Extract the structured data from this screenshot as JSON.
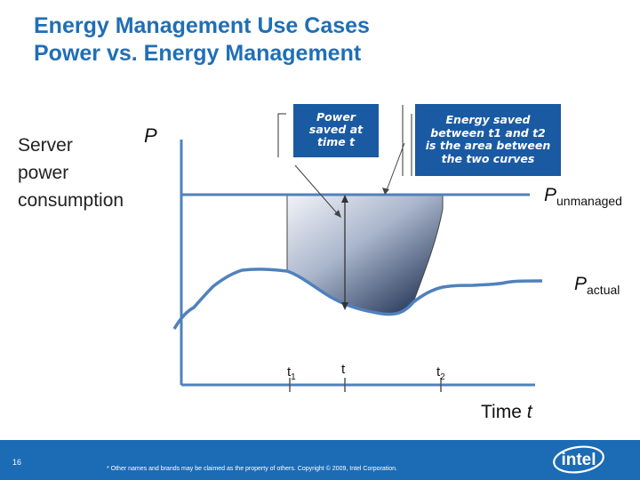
{
  "title": {
    "line1": "Energy Management Use Cases",
    "line2": "Power vs. Energy Management"
  },
  "ylabel": {
    "line1": "Server",
    "line2": "power",
    "line3": "consumption"
  },
  "axis": {
    "p": "P",
    "time_label": "Time",
    "time_var": "t"
  },
  "callouts": {
    "power": {
      "l1": "Power",
      "l2": "saved at",
      "l3": "time t"
    },
    "energy": {
      "l1": "Energy saved",
      "l2": "between t1 and t2",
      "l3": "is the area between",
      "l4": "the two curves"
    }
  },
  "curves": {
    "unmanaged_p": "P",
    "unmanaged_sub": "unmanaged",
    "actual_p": "P",
    "actual_sub": "actual"
  },
  "ticks": {
    "t1": "t",
    "t1_sub": "1",
    "t": "t",
    "t2": "t",
    "t2_sub": "2"
  },
  "footer": {
    "page": "16",
    "text": "* Other names and brands may be claimed as the property of others.    Copyright © 2009, Intel Corporation.",
    "logo": "intel"
  },
  "colors": {
    "title": "#1f6fb5",
    "curve": "#4f81bd",
    "callout": "#1a5aa3",
    "footer": "#1b6bb5"
  }
}
